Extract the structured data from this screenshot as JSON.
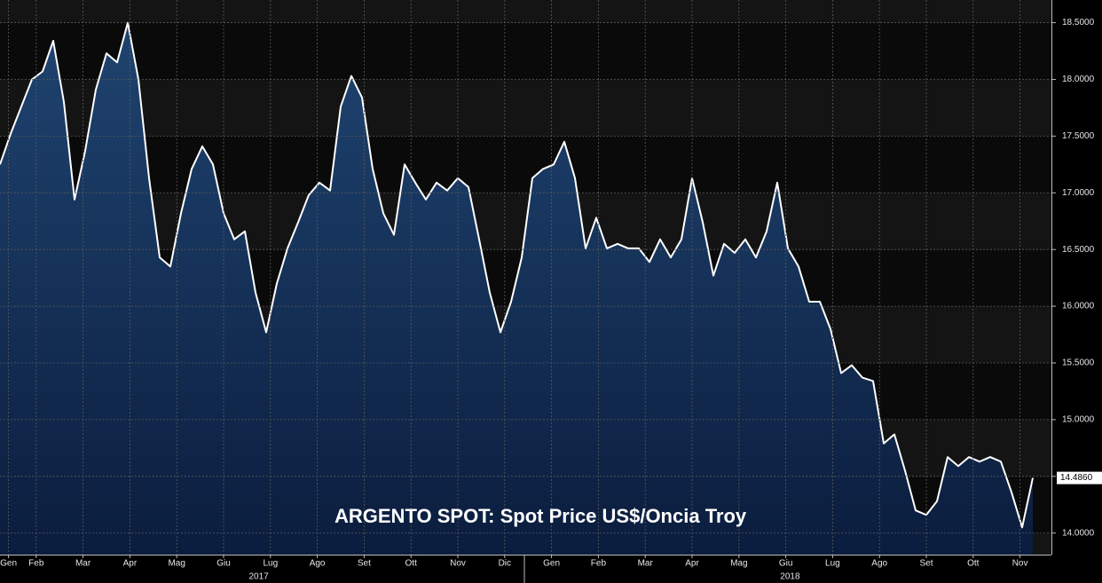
{
  "chart_data": {
    "type": "area",
    "title": "ARGENTO SPOT: Spot Price US$/Oncia Troy",
    "color": "#ffffff",
    "fill": "#17345e",
    "values": [
      17.25,
      17.52,
      17.76,
      18.0,
      18.07,
      18.34,
      17.8,
      16.94,
      17.37,
      17.91,
      18.23,
      18.15,
      18.5,
      18.0,
      17.13,
      16.43,
      16.35,
      16.82,
      17.21,
      17.41,
      17.25,
      16.82,
      16.59,
      16.66,
      16.12,
      15.77,
      16.2,
      16.51,
      16.74,
      16.98,
      17.09,
      17.02,
      17.76,
      18.03,
      17.84,
      17.21,
      16.82,
      16.63,
      17.25,
      17.09,
      16.94,
      17.09,
      17.02,
      17.13,
      17.05,
      16.59,
      16.12,
      15.77,
      16.04,
      16.43,
      17.13,
      17.21,
      17.25,
      17.45,
      17.13,
      16.51,
      16.78,
      16.51,
      16.55,
      16.51,
      16.51,
      16.39,
      16.59,
      16.43,
      16.59,
      17.13,
      16.74,
      16.27,
      16.55,
      16.47,
      16.59,
      16.43,
      16.66,
      17.09,
      16.51,
      16.35,
      16.04,
      16.04,
      15.8,
      15.41,
      15.48,
      15.37,
      15.34,
      14.79,
      14.87,
      14.55,
      14.2,
      14.16,
      14.28,
      14.67,
      14.59,
      14.67,
      14.63,
      14.67,
      14.63,
      14.36,
      14.05,
      14.486
    ],
    "xlim": [
      0,
      98.75
    ],
    "xticks": [
      {
        "value": 0.8,
        "label": "Gen"
      },
      {
        "value": 3.4,
        "label": "Feb"
      },
      {
        "value": 7.8,
        "label": "Mar"
      },
      {
        "value": 12.2,
        "label": "Apr"
      },
      {
        "value": 16.6,
        "label": "Mag"
      },
      {
        "value": 21,
        "label": "Giu"
      },
      {
        "value": 25.4,
        "label": "Lug"
      },
      {
        "value": 29.8,
        "label": "Ago"
      },
      {
        "value": 34.2,
        "label": "Set"
      },
      {
        "value": 38.6,
        "label": "Ott"
      },
      {
        "value": 43,
        "label": "Nov"
      },
      {
        "value": 47.4,
        "label": "Dic"
      },
      {
        "value": 51.8,
        "label": "Gen"
      },
      {
        "value": 56.2,
        "label": "Feb"
      },
      {
        "value": 60.6,
        "label": "Mar"
      },
      {
        "value": 65,
        "label": "Apr"
      },
      {
        "value": 69.4,
        "label": "Mag"
      },
      {
        "value": 73.8,
        "label": "Giu"
      },
      {
        "value": 78.2,
        "label": "Lug"
      },
      {
        "value": 82.6,
        "label": "Ago"
      },
      {
        "value": 87,
        "label": "Set"
      },
      {
        "value": 91.4,
        "label": "Ott"
      },
      {
        "value": 95.8,
        "label": "Nov"
      }
    ],
    "x2ticks": [
      {
        "value": 24.3,
        "label": "2017"
      },
      {
        "value": 74.2,
        "label": "2018"
      }
    ],
    "ylim": [
      13.81,
      18.7
    ],
    "yticks": [
      {
        "value": 14,
        "label": "14.0000"
      },
      {
        "value": 14.5,
        "label": "14.5000"
      },
      {
        "value": 15,
        "label": "15.0000"
      },
      {
        "value": 15.5,
        "label": "15.5000"
      },
      {
        "value": 16,
        "label": "16.0000"
      },
      {
        "value": 16.5,
        "label": "16.5000"
      },
      {
        "value": 17,
        "label": "17.0000"
      },
      {
        "value": 17.5,
        "label": "17.5000"
      },
      {
        "value": 18,
        "label": "18.0000"
      },
      {
        "value": 18.5,
        "label": "18.5000"
      }
    ],
    "last_price": {
      "value": 14.486,
      "label": "14.4860"
    },
    "grid": true
  }
}
